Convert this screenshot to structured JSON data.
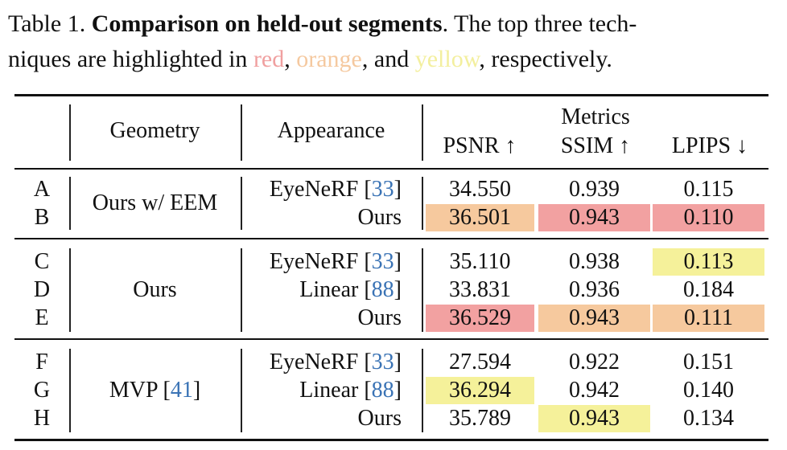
{
  "caption": {
    "prefix": "Table 1.",
    "title": "Comparison on held-out segments",
    "line1_rest": ". The top three tech-",
    "line2_start": "niques are highlighted in ",
    "red": "red",
    "comma1": ", ",
    "orange": "orange",
    "and": ", and ",
    "yellow": "yellow",
    "end": ", respectively."
  },
  "header": {
    "geometry": "Geometry",
    "appearance": "Appearance",
    "metrics": "Metrics",
    "psnr": "PSNR ↑",
    "ssim": "SSIM ↑",
    "lpips": "LPIPS ↓"
  },
  "groups": [
    {
      "geometry": "Ours w/ EEM",
      "geometry_ref": ""
    },
    {
      "geometry": "Ours",
      "geometry_ref": ""
    },
    {
      "geometry": "MVP [",
      "geometry_ref": "41",
      "geometry_close": "]"
    }
  ],
  "rows": [
    {
      "id": "A",
      "appearance": "EyeNeRF [",
      "ref": "33",
      "close": "]",
      "psnr": "34.550",
      "ssim": "0.939",
      "lpips": "0.115"
    },
    {
      "id": "B",
      "appearance": "Ours",
      "ref": "",
      "close": "",
      "psnr": "36.501",
      "ssim": "0.943",
      "lpips": "0.110"
    },
    {
      "id": "C",
      "appearance": "EyeNeRF [",
      "ref": "33",
      "close": "]",
      "psnr": "35.110",
      "ssim": "0.938",
      "lpips": "0.113"
    },
    {
      "id": "D",
      "appearance": "Linear [",
      "ref": "88",
      "close": "]",
      "psnr": "33.831",
      "ssim": "0.936",
      "lpips": "0.184"
    },
    {
      "id": "E",
      "appearance": "Ours",
      "ref": "",
      "close": "",
      "psnr": "36.529",
      "ssim": "0.943",
      "lpips": "0.111"
    },
    {
      "id": "F",
      "appearance": "EyeNeRF [",
      "ref": "33",
      "close": "]",
      "psnr": "27.594",
      "ssim": "0.922",
      "lpips": "0.151"
    },
    {
      "id": "G",
      "appearance": "Linear [",
      "ref": "88",
      "close": "]",
      "psnr": "36.294",
      "ssim": "0.942",
      "lpips": "0.140"
    },
    {
      "id": "H",
      "appearance": "Ours",
      "ref": "",
      "close": "",
      "psnr": "35.789",
      "ssim": "0.943",
      "lpips": "0.134"
    }
  ],
  "highlight_colors": {
    "red": "#f2a1a1",
    "orange": "#f6c99e",
    "yellow": "#f5f19a"
  }
}
